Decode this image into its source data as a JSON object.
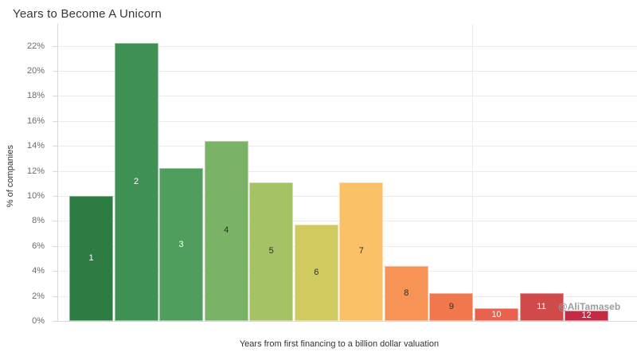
{
  "title": "Years to Become A Unicorn",
  "watermark": "@AliTamaseb",
  "chart_data": {
    "type": "bar",
    "title": "Years to Become A Unicorn",
    "xlabel": "Years from first financing to a billion dollar valuation",
    "ylabel": "% of companies",
    "categories": [
      "1",
      "2",
      "3",
      "4",
      "5",
      "6",
      "7",
      "8",
      "9",
      "10",
      "11",
      "12"
    ],
    "values": [
      10.0,
      22.2,
      12.2,
      14.4,
      11.1,
      7.7,
      11.1,
      4.4,
      2.2,
      1.0,
      2.2,
      0.8
    ],
    "ylim": [
      0,
      23
    ],
    "grid": true,
    "legend": false,
    "yticks": [
      {
        "value": 0,
        "label": "0%"
      },
      {
        "value": 2,
        "label": "2%"
      },
      {
        "value": 4,
        "label": "4%"
      },
      {
        "value": 6,
        "label": "6%"
      },
      {
        "value": 8,
        "label": "8%"
      },
      {
        "value": 10,
        "label": "10%"
      },
      {
        "value": 12,
        "label": "12%"
      },
      {
        "value": 14,
        "label": "14%"
      },
      {
        "value": 16,
        "label": "16%"
      },
      {
        "value": 18,
        "label": "18%"
      },
      {
        "value": 20,
        "label": "20%"
      },
      {
        "value": 22,
        "label": "22%"
      }
    ],
    "bar_colors": [
      "#2d7c44",
      "#3e9153",
      "#4f9e5e",
      "#7ab266",
      "#a5c365",
      "#d1cb5f",
      "#fbc166",
      "#f79455",
      "#f1784c",
      "#e8624d",
      "#cf4a48",
      "#c32b44"
    ],
    "bar_label_colors": [
      "#ffffff",
      "#ffffff",
      "#ffffff",
      "#2d2d2d",
      "#2d2d2d",
      "#2d2d2d",
      "#2d2d2d",
      "#2d2d2d",
      "#2d2d2d",
      "#ffffff",
      "#ffffff",
      "#ffffff"
    ]
  }
}
